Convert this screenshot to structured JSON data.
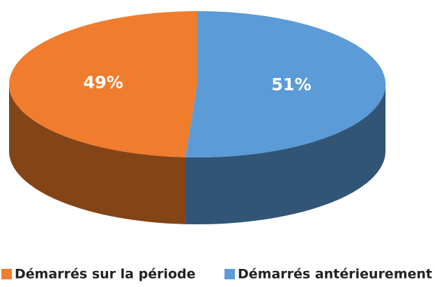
{
  "chart_data": {
    "type": "pie",
    "categories": [
      "Démarrés sur la période",
      "Démarrés antérieurement"
    ],
    "values": [
      49,
      51
    ],
    "value_labels": [
      "49%",
      "51%"
    ],
    "colors": [
      "#ef7d2d",
      "#5b9bd8"
    ],
    "legend": "bottom"
  }
}
